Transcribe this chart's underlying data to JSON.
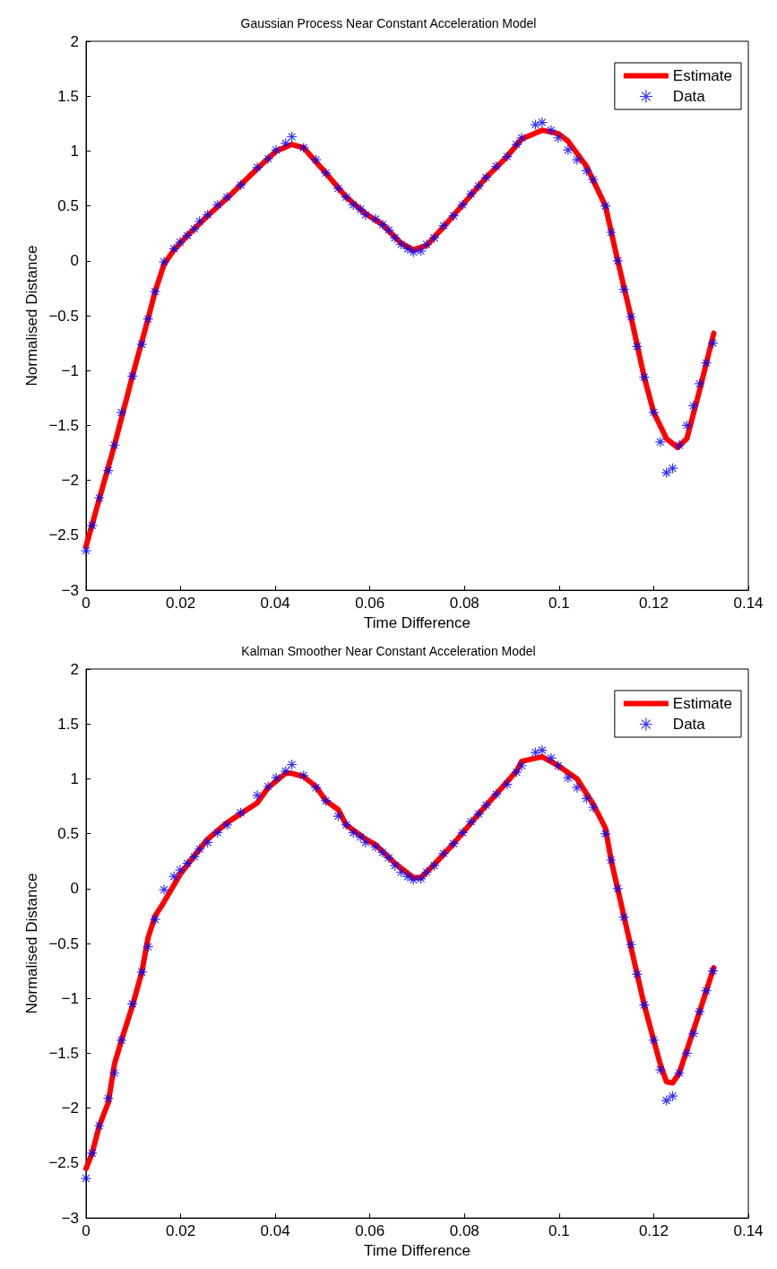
{
  "chart_data": [
    {
      "type": "line",
      "title": "Gaussian Process Near Constant Acceleration Model",
      "xlabel": "Time Difference",
      "ylabel": "Normalised Distance",
      "xlim": [
        0,
        0.14
      ],
      "xticks": [
        0,
        0.02,
        0.04,
        0.06,
        0.08,
        0.1,
        0.12,
        0.14
      ],
      "ylim": [
        -3,
        2
      ],
      "yticks": [
        -3,
        -2.5,
        -2,
        -1.5,
        -1,
        -0.5,
        0,
        0.5,
        1,
        1.5,
        2
      ],
      "grid": false,
      "legend": "top right",
      "series": [
        {
          "name": "Estimate",
          "color": "#ff0000",
          "marker": "none",
          "line_style": "solid",
          "x": [
            0,
            0.0028,
            0.006,
            0.0098,
            0.0131,
            0.0146,
            0.0165,
            0.0186,
            0.0214,
            0.0257,
            0.0298,
            0.0362,
            0.0402,
            0.0435,
            0.046,
            0.0507,
            0.055,
            0.0591,
            0.0627,
            0.0666,
            0.0692,
            0.072,
            0.0756,
            0.0796,
            0.0846,
            0.089,
            0.0921,
            0.0964,
            0.0998,
            0.1019,
            0.1058,
            0.1098,
            0.1124,
            0.1152,
            0.118,
            0.12,
            0.1227,
            0.125,
            0.127,
            0.1297,
            0.1327
          ],
          "values": [
            -2.6,
            -2.17,
            -1.68,
            -1.05,
            -0.53,
            -0.28,
            -0.03,
            0.1,
            0.23,
            0.41,
            0.57,
            0.84,
            1.0,
            1.06,
            1.03,
            0.8,
            0.58,
            0.43,
            0.33,
            0.16,
            0.1,
            0.14,
            0.31,
            0.51,
            0.76,
            0.95,
            1.11,
            1.19,
            1.16,
            1.09,
            0.86,
            0.5,
            0.0,
            -0.51,
            -1.06,
            -1.38,
            -1.62,
            -1.7,
            -1.62,
            -1.18,
            -0.66
          ]
        },
        {
          "name": "Data",
          "type": "scatter",
          "color": "#0000ff",
          "marker": "cross",
          "x": [
            0,
            0.0013,
            0.0028,
            0.0047,
            0.006,
            0.0075,
            0.0098,
            0.0118,
            0.0131,
            0.0146,
            0.0165,
            0.0186,
            0.0199,
            0.0214,
            0.0229,
            0.024,
            0.0257,
            0.0278,
            0.0298,
            0.0327,
            0.0362,
            0.0385,
            0.0402,
            0.0422,
            0.0435,
            0.046,
            0.0486,
            0.0507,
            0.0533,
            0.055,
            0.0565,
            0.058,
            0.0591,
            0.0612,
            0.0627,
            0.064,
            0.0653,
            0.0666,
            0.068,
            0.0692,
            0.0708,
            0.072,
            0.0736,
            0.0756,
            0.0777,
            0.0796,
            0.0814,
            0.083,
            0.0846,
            0.0867,
            0.089,
            0.091,
            0.0921,
            0.095,
            0.0964,
            0.0983,
            0.0998,
            0.1019,
            0.1038,
            0.1058,
            0.1072,
            0.1098,
            0.111,
            0.1124,
            0.1137,
            0.1152,
            0.1165,
            0.118,
            0.12,
            0.1214,
            0.1227,
            0.124,
            0.1254,
            0.127,
            0.1284,
            0.1297,
            0.1311,
            0.1325
          ],
          "values": [
            -2.64,
            -2.41,
            -2.16,
            -1.91,
            -1.68,
            -1.38,
            -1.05,
            -0.76,
            -0.53,
            -0.28,
            -0.01,
            0.11,
            0.17,
            0.23,
            0.29,
            0.36,
            0.42,
            0.51,
            0.58,
            0.69,
            0.85,
            0.93,
            1.01,
            1.07,
            1.13,
            1.03,
            0.92,
            0.8,
            0.66,
            0.58,
            0.51,
            0.47,
            0.42,
            0.38,
            0.33,
            0.28,
            0.21,
            0.15,
            0.11,
            0.08,
            0.09,
            0.15,
            0.21,
            0.32,
            0.41,
            0.51,
            0.61,
            0.68,
            0.76,
            0.86,
            0.95,
            1.06,
            1.12,
            1.24,
            1.26,
            1.19,
            1.12,
            1.01,
            0.92,
            0.82,
            0.74,
            0.5,
            0.26,
            0.0,
            -0.26,
            -0.51,
            -0.78,
            -1.06,
            -1.38,
            -1.65,
            -1.93,
            -1.89,
            -1.68,
            -1.5,
            -1.32,
            -1.12,
            -0.93,
            -0.75
          ]
        }
      ]
    },
    {
      "type": "line",
      "title": "Kalman Smoother Near Constant Acceleration Model",
      "xlabel": "Time Difference",
      "ylabel": "Normalised Distance",
      "xlim": [
        0,
        0.14
      ],
      "xticks": [
        0,
        0.02,
        0.04,
        0.06,
        0.08,
        0.1,
        0.12,
        0.14
      ],
      "ylim": [
        -3,
        2
      ],
      "yticks": [
        -3,
        -2.5,
        -2,
        -1.5,
        -1,
        -0.5,
        0,
        0.5,
        1,
        1.5,
        2
      ],
      "grid": false,
      "legend": "top right",
      "series": [
        {
          "name": "Estimate",
          "color": "#ff0000",
          "marker": "none",
          "line_style": "solid",
          "x": [
            0,
            0.0013,
            0.0028,
            0.0047,
            0.006,
            0.0075,
            0.0098,
            0.0118,
            0.0131,
            0.0146,
            0.0165,
            0.0199,
            0.0229,
            0.0257,
            0.0298,
            0.0362,
            0.0385,
            0.0422,
            0.0435,
            0.046,
            0.0486,
            0.0507,
            0.0533,
            0.055,
            0.0591,
            0.0612,
            0.0653,
            0.0692,
            0.0708,
            0.0736,
            0.0777,
            0.083,
            0.0867,
            0.091,
            0.0921,
            0.0964,
            0.0998,
            0.1038,
            0.1072,
            0.1098,
            0.111,
            0.1165,
            0.118,
            0.12,
            0.1214,
            0.1227,
            0.124,
            0.1254,
            0.1297,
            0.1327
          ],
          "values": [
            -2.55,
            -2.41,
            -2.16,
            -1.95,
            -1.6,
            -1.38,
            -1.07,
            -0.76,
            -0.45,
            -0.25,
            -0.12,
            0.13,
            0.3,
            0.45,
            0.6,
            0.78,
            0.92,
            1.05,
            1.05,
            1.02,
            0.93,
            0.8,
            0.72,
            0.58,
            0.45,
            0.4,
            0.23,
            0.1,
            0.1,
            0.22,
            0.41,
            0.68,
            0.86,
            1.07,
            1.16,
            1.2,
            1.12,
            1.0,
            0.77,
            0.55,
            0.26,
            -0.78,
            -1.06,
            -1.38,
            -1.6,
            -1.76,
            -1.77,
            -1.68,
            -1.12,
            -0.72
          ]
        },
        {
          "name": "Data",
          "type": "scatter",
          "color": "#0000ff",
          "marker": "cross",
          "x": [
            0,
            0.0013,
            0.0028,
            0.0047,
            0.006,
            0.0075,
            0.0098,
            0.0118,
            0.0131,
            0.0146,
            0.0165,
            0.0186,
            0.0199,
            0.0214,
            0.0229,
            0.024,
            0.0257,
            0.0278,
            0.0298,
            0.0327,
            0.0362,
            0.0385,
            0.0402,
            0.0422,
            0.0435,
            0.046,
            0.0486,
            0.0507,
            0.0533,
            0.055,
            0.0565,
            0.058,
            0.0591,
            0.0612,
            0.0627,
            0.064,
            0.0653,
            0.0666,
            0.068,
            0.0692,
            0.0708,
            0.072,
            0.0736,
            0.0756,
            0.0777,
            0.0796,
            0.0814,
            0.083,
            0.0846,
            0.0867,
            0.089,
            0.091,
            0.0921,
            0.095,
            0.0964,
            0.0983,
            0.0998,
            0.1019,
            0.1038,
            0.1058,
            0.1072,
            0.1098,
            0.111,
            0.1124,
            0.1137,
            0.1152,
            0.1165,
            0.118,
            0.12,
            0.1214,
            0.1227,
            0.124,
            0.1254,
            0.127,
            0.1284,
            0.1297,
            0.1311,
            0.1325
          ],
          "values": [
            -2.64,
            -2.41,
            -2.16,
            -1.91,
            -1.68,
            -1.38,
            -1.05,
            -0.76,
            -0.53,
            -0.28,
            -0.01,
            0.11,
            0.17,
            0.23,
            0.29,
            0.36,
            0.42,
            0.51,
            0.58,
            0.69,
            0.85,
            0.93,
            1.01,
            1.07,
            1.13,
            1.03,
            0.92,
            0.8,
            0.66,
            0.58,
            0.51,
            0.47,
            0.42,
            0.38,
            0.33,
            0.28,
            0.21,
            0.15,
            0.11,
            0.08,
            0.09,
            0.15,
            0.21,
            0.32,
            0.41,
            0.51,
            0.61,
            0.68,
            0.76,
            0.86,
            0.95,
            1.06,
            1.12,
            1.24,
            1.26,
            1.19,
            1.12,
            1.01,
            0.92,
            0.82,
            0.74,
            0.5,
            0.26,
            0.0,
            -0.26,
            -0.51,
            -0.78,
            -1.06,
            -1.38,
            -1.65,
            -1.93,
            -1.89,
            -1.68,
            -1.5,
            -1.32,
            -1.12,
            -0.93,
            -0.75
          ]
        }
      ]
    }
  ]
}
